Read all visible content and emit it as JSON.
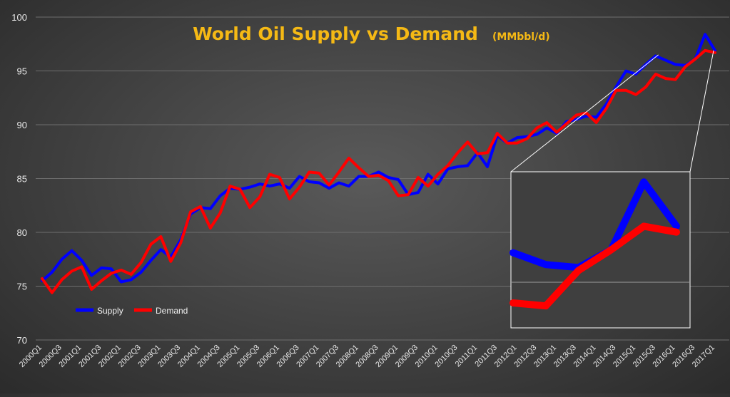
{
  "chart_data": {
    "type": "line",
    "title": "World Oil Supply vs Demand",
    "subtitle": "(MMbbl/d)",
    "xlabel": "",
    "ylabel": "",
    "ylim": [
      70,
      100
    ],
    "yticks": [
      70,
      75,
      80,
      85,
      90,
      95,
      100
    ],
    "grid": true,
    "legend_position": "bottom-left",
    "categories": [
      "2000Q1",
      "2000Q2",
      "2000Q3",
      "2000Q4",
      "2001Q1",
      "2001Q2",
      "2001Q3",
      "2001Q4",
      "2002Q1",
      "2002Q2",
      "2002Q3",
      "2002Q4",
      "2003Q1",
      "2003Q2",
      "2003Q3",
      "2003Q4",
      "2004Q1",
      "2004Q2",
      "2004Q3",
      "2004Q4",
      "2005Q1",
      "2005Q2",
      "2005Q3",
      "2005Q4",
      "2006Q1",
      "2006Q2",
      "2006Q3",
      "2006Q4",
      "2007Q1",
      "2007Q2",
      "2007Q3",
      "2007Q4",
      "2008Q1",
      "2008Q2",
      "2008Q3",
      "2008Q4",
      "2009Q1",
      "2009Q2",
      "2009Q3",
      "2009Q4",
      "2010Q1",
      "2010Q2",
      "2010Q3",
      "2010Q4",
      "2011Q1",
      "2011Q2",
      "2011Q3",
      "2011Q4",
      "2012Q1",
      "2012Q2",
      "2012Q3",
      "2012Q4",
      "2013Q1",
      "2013Q2",
      "2013Q3",
      "2013Q4",
      "2014Q1",
      "2014Q2",
      "2014Q3",
      "2014Q4",
      "2015Q1",
      "2015Q2",
      "2015Q3",
      "2015Q4",
      "2016Q1",
      "2016Q2",
      "2016Q3",
      "2016Q4",
      "2017Q1"
    ],
    "tick_labels": [
      "2000Q1",
      "2000Q3",
      "2001Q1",
      "2001Q3",
      "2002Q1",
      "2002Q3",
      "2003Q1",
      "2003Q3",
      "2004Q1",
      "2004Q3",
      "2005Q1",
      "2005Q3",
      "2006Q1",
      "2006Q3",
      "2007Q1",
      "2007Q3",
      "2008Q1",
      "2008Q3",
      "2009Q1",
      "2009Q3",
      "2010Q1",
      "2010Q3",
      "2011Q1",
      "2011Q3",
      "2012Q1",
      "2012Q3",
      "2013Q1",
      "2013Q3",
      "2014Q1",
      "2014Q3",
      "2015Q1",
      "2015Q3",
      "2016Q1",
      "2016Q3",
      "2017Q1"
    ],
    "series": [
      {
        "name": "Supply",
        "color": "#0000ff",
        "values": [
          75.5,
          76.3,
          77.5,
          78.3,
          77.4,
          76.0,
          76.7,
          76.6,
          75.4,
          75.6,
          76.3,
          77.4,
          78.4,
          77.7,
          79.3,
          81.7,
          82.3,
          82.2,
          83.4,
          84.1,
          84.0,
          84.2,
          84.5,
          84.3,
          84.5,
          84.1,
          85.2,
          84.7,
          84.6,
          84.1,
          84.6,
          84.3,
          85.2,
          85.2,
          85.6,
          85.1,
          84.9,
          83.5,
          83.7,
          85.4,
          84.5,
          85.9,
          86.1,
          86.2,
          87.4,
          86.1,
          89.0,
          88.3,
          88.8,
          88.9,
          89.1,
          89.7,
          89.2,
          90.3,
          90.5,
          90.8,
          90.7,
          91.9,
          93.5,
          95.0,
          94.7,
          95.6,
          96.4,
          96.0,
          95.6,
          95.5,
          96.1,
          98.4,
          96.9
        ]
      },
      {
        "name": "Demand",
        "color": "#ff0000",
        "values": [
          75.7,
          74.4,
          75.6,
          76.4,
          76.8,
          74.7,
          75.5,
          76.2,
          76.5,
          76.1,
          77.2,
          78.9,
          79.6,
          77.3,
          79.0,
          81.9,
          82.4,
          80.4,
          81.8,
          84.3,
          84.0,
          82.3,
          83.3,
          85.4,
          85.1,
          83.1,
          84.2,
          85.6,
          85.5,
          84.4,
          85.6,
          86.9,
          86.0,
          85.2,
          85.3,
          84.8,
          83.4,
          83.5,
          85.1,
          84.3,
          85.4,
          86.2,
          87.4,
          88.4,
          87.3,
          87.4,
          89.2,
          88.3,
          88.3,
          88.7,
          89.7,
          90.2,
          89.3,
          90.1,
          90.9,
          91.1,
          90.2,
          91.5,
          93.2,
          93.2,
          92.8,
          93.5,
          94.7,
          94.3,
          94.2,
          95.4,
          96.1,
          96.9,
          96.7
        ]
      }
    ]
  }
}
